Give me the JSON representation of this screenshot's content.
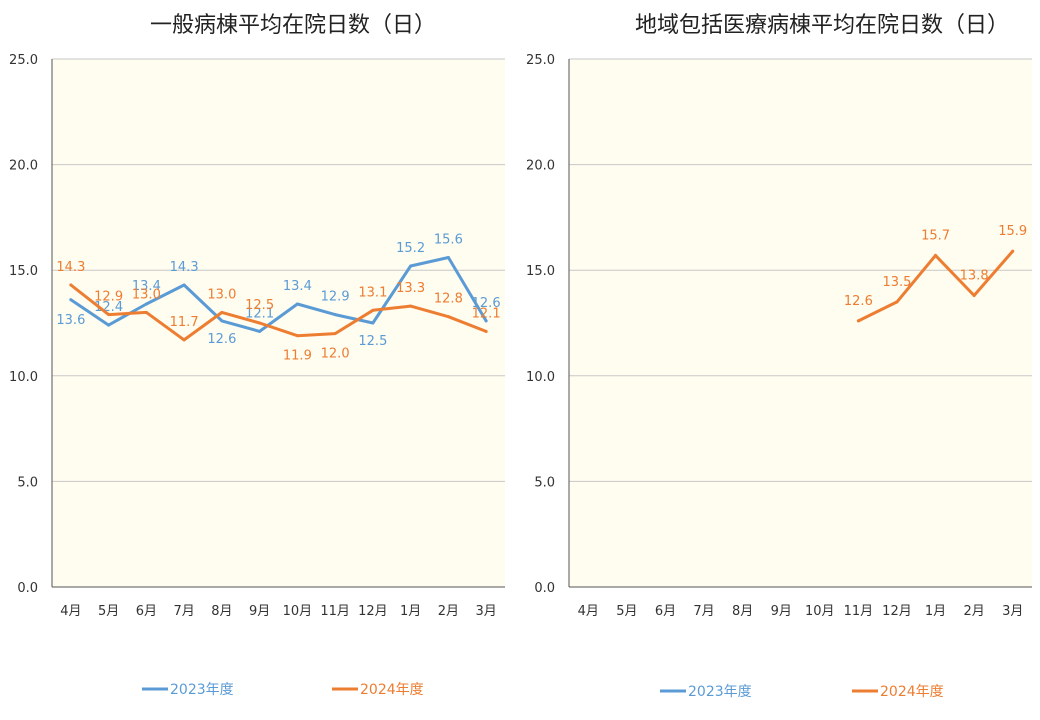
{
  "chart_data": [
    {
      "type": "line",
      "title": "一般病棟平均在院日数（日）",
      "categories": [
        "4月",
        "5月",
        "6月",
        "7月",
        "8月",
        "9月",
        "10月",
        "11月",
        "12月",
        "1月",
        "2月",
        "3月"
      ],
      "ylim": [
        0,
        25
      ],
      "yticks": [
        "0.0",
        "5.0",
        "10.0",
        "15.0",
        "20.0",
        "25.0"
      ],
      "ytick_values": [
        0,
        5,
        10,
        15,
        20,
        25
      ],
      "grid": true,
      "legend_position": "bottom",
      "plot_bg": "#fffcf0",
      "series": [
        {
          "name": "2023年度",
          "color": "#5b9bd5",
          "values": [
            13.6,
            12.4,
            13.4,
            14.3,
            12.6,
            12.1,
            13.4,
            12.9,
            12.5,
            15.2,
            15.6,
            12.6
          ],
          "labels": [
            "13.6",
            "12.4",
            "13.4",
            "14.3",
            "12.6",
            "12.1",
            "13.4",
            "12.9",
            "12.5",
            "15.2",
            "15.6",
            "12.6"
          ]
        },
        {
          "name": "2024年度",
          "color": "#ed7d31",
          "values": [
            14.3,
            12.9,
            13.0,
            11.7,
            13.0,
            12.5,
            11.9,
            12.0,
            13.1,
            13.3,
            12.8,
            12.1
          ],
          "labels": [
            "14.3",
            "12.9",
            "13.0",
            "11.7",
            "13.0",
            "12.5",
            "11.9",
            "12.0",
            "13.1",
            "13.3",
            "12.8",
            "12.1"
          ]
        }
      ]
    },
    {
      "type": "line",
      "title": "地域包括医療病棟平均在院日数（日）",
      "categories": [
        "4月",
        "5月",
        "6月",
        "7月",
        "8月",
        "9月",
        "10月",
        "11月",
        "12月",
        "1月",
        "2月",
        "3月"
      ],
      "ylim": [
        0,
        25
      ],
      "yticks": [
        "0.0",
        "5.0",
        "10.0",
        "15.0",
        "20.0",
        "25.0"
      ],
      "ytick_values": [
        0,
        5,
        10,
        15,
        20,
        25
      ],
      "grid": true,
      "legend_position": "bottom",
      "plot_bg": "#fffcf0",
      "series": [
        {
          "name": "2023年度",
          "color": "#5b9bd5",
          "values": [
            null,
            null,
            null,
            null,
            null,
            null,
            null,
            null,
            null,
            null,
            null,
            null
          ],
          "labels": []
        },
        {
          "name": "2024年度",
          "color": "#ed7d31",
          "values": [
            null,
            null,
            null,
            null,
            null,
            null,
            null,
            12.6,
            13.5,
            15.7,
            13.8,
            15.9
          ],
          "labels": [
            null,
            null,
            null,
            null,
            null,
            null,
            null,
            "12.6",
            "13.5",
            "15.7",
            "13.8",
            "15.9"
          ]
        }
      ]
    }
  ]
}
